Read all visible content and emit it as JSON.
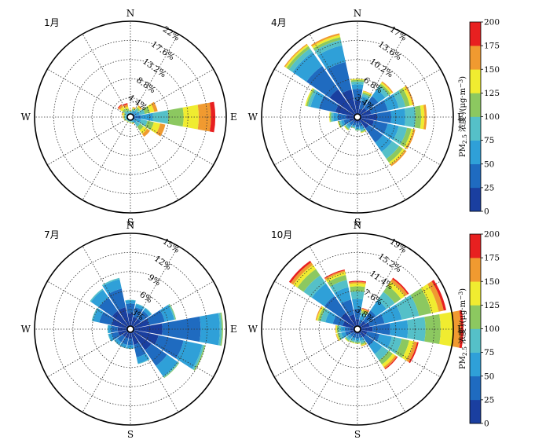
{
  "chart_data": [
    {
      "type": "wind-rose",
      "title": "1月",
      "directions": [
        "N",
        "NNE",
        "NE",
        "ENE",
        "E",
        "ESE",
        "SE",
        "SSE",
        "S",
        "SSW",
        "SW",
        "WSW",
        "W",
        "WNW",
        "NW",
        "NNW"
      ],
      "compass_labels": {
        "N": "N",
        "E": "E",
        "S": "S",
        "W": "W"
      },
      "ring_labels": [
        "4.4%",
        "8.8%",
        "13.2%",
        "17.6%",
        "22%"
      ],
      "rmax": 22,
      "bins": [
        0,
        25,
        50,
        75,
        100,
        125,
        150,
        175,
        200
      ],
      "frequencies": [
        [
          0.3,
          0.3,
          0.4,
          0.3,
          0.2,
          0.1,
          0.1,
          0
        ],
        [
          0.4,
          0.4,
          0.5,
          0.4,
          0.3,
          0.2,
          0.2,
          0
        ],
        [
          0.5,
          0.6,
          0.7,
          0.5,
          0.4,
          0.3,
          0.3,
          0
        ],
        [
          0.4,
          0.8,
          1.0,
          1.2,
          1.2,
          1.0,
          0.8,
          0
        ],
        [
          0.8,
          1.6,
          2.8,
          3.5,
          3.5,
          3.5,
          2.8,
          1.0
        ],
        [
          0.5,
          0.8,
          1.2,
          1.5,
          1.5,
          1.5,
          1.2,
          0
        ],
        [
          0.4,
          0.5,
          0.8,
          1.0,
          1.0,
          1.0,
          0.8,
          0
        ],
        [
          0.3,
          0.3,
          0.4,
          0.3,
          0.2,
          0.1,
          0.1,
          0
        ],
        [
          0.3,
          0.3,
          0.3,
          0.2,
          0.1,
          0.1,
          0,
          0
        ],
        [
          0.3,
          0.3,
          0.3,
          0.2,
          0.1,
          0.1,
          0,
          0
        ],
        [
          0.3,
          0.3,
          0.3,
          0.2,
          0.1,
          0.1,
          0,
          0
        ],
        [
          0.3,
          0.3,
          0.4,
          0.3,
          0.2,
          0.1,
          0,
          0
        ],
        [
          0.3,
          0.3,
          0.4,
          0.3,
          0.2,
          0.2,
          0.1,
          0
        ],
        [
          0.3,
          0.3,
          0.4,
          0.3,
          0.3,
          0.3,
          0.2,
          0
        ],
        [
          0.3,
          0.3,
          0.5,
          0.6,
          0.6,
          0.6,
          0.5,
          0.2
        ],
        [
          0.3,
          0.3,
          0.4,
          0.5,
          0.5,
          0.5,
          0.5,
          0.3
        ]
      ]
    },
    {
      "type": "wind-rose",
      "title": "4月",
      "directions": [
        "N",
        "NNE",
        "NE",
        "ENE",
        "E",
        "ESE",
        "SE",
        "SSE",
        "S",
        "SSW",
        "SW",
        "WSW",
        "W",
        "WNW",
        "NW",
        "NNW"
      ],
      "compass_labels": {
        "N": "N",
        "E": "E",
        "S": "S",
        "W": "W"
      },
      "ring_labels": [
        "3.4%",
        "6.8%",
        "10.2%",
        "13.6%",
        "17%"
      ],
      "rmax": 17,
      "bins": [
        0,
        25,
        50,
        75,
        100,
        125,
        150,
        175,
        200
      ],
      "frequencies": [
        [
          3.0,
          2.0,
          0.8,
          0.5,
          0.3,
          0.2,
          0,
          0
        ],
        [
          1.5,
          1.5,
          0.8,
          0.4,
          0.3,
          0.2,
          0.1,
          0
        ],
        [
          2.0,
          2.5,
          1.5,
          0.8,
          0.4,
          0.3,
          0.2,
          0
        ],
        [
          2.5,
          3.0,
          2.0,
          1.2,
          0.8,
          0.5,
          0.3,
          0
        ],
        [
          3.5,
          2.5,
          2.5,
          1.8,
          1.0,
          0.6,
          0.4,
          0
        ],
        [
          3.0,
          2.5,
          2.0,
          1.5,
          0.8,
          0.4,
          0.3,
          0
        ],
        [
          2.5,
          3.0,
          2.0,
          1.5,
          0.8,
          0.5,
          0.3,
          0
        ],
        [
          1.0,
          0.8,
          0.5,
          0.3,
          0.2,
          0.1,
          0,
          0
        ],
        [
          1.0,
          0.8,
          0.3,
          0.2,
          0.1,
          0,
          0,
          0
        ],
        [
          1.0,
          0.5,
          0.3,
          0.2,
          0.1,
          0,
          0,
          0
        ],
        [
          1.0,
          0.8,
          0.5,
          0.3,
          0.2,
          0.1,
          0,
          0
        ],
        [
          1.5,
          1.0,
          0.5,
          0.3,
          0.2,
          0.1,
          0,
          0
        ],
        [
          2.0,
          1.5,
          0.8,
          0.4,
          0.2,
          0.1,
          0,
          0
        ],
        [
          4.0,
          3.0,
          1.5,
          0.5,
          0.3,
          0.2,
          0,
          0
        ],
        [
          6.0,
          5.0,
          3.0,
          0.8,
          0.5,
          0.3,
          0.2,
          0
        ],
        [
          5.0,
          5.0,
          3.0,
          1.0,
          0.5,
          0.4,
          0.3,
          0
        ]
      ]
    },
    {
      "type": "wind-rose",
      "title": "7月",
      "directions": [
        "N",
        "NNE",
        "NE",
        "ENE",
        "E",
        "ESE",
        "SE",
        "SSE",
        "S",
        "SSW",
        "SW",
        "WSW",
        "W",
        "WNW",
        "NW",
        "NNW"
      ],
      "compass_labels": {
        "N": "N",
        "E": "E",
        "S": "S",
        "W": "W"
      },
      "ring_labels": [
        "3%",
        "6%",
        "9%",
        "12%",
        "15%"
      ],
      "rmax": 15,
      "bins": [
        0,
        25,
        50,
        75,
        100,
        125,
        150,
        175,
        200
      ],
      "frequencies": [
        [
          2.5,
          1.5,
          0.5,
          0.1,
          0,
          0,
          0,
          0
        ],
        [
          2.0,
          1.5,
          0.5,
          0.1,
          0,
          0,
          0,
          0
        ],
        [
          2.0,
          1.5,
          0.5,
          0.1,
          0,
          0,
          0,
          0
        ],
        [
          3.0,
          2.5,
          1.5,
          0.2,
          0.1,
          0,
          0,
          0
        ],
        [
          5.0,
          6.0,
          3.0,
          0.3,
          0.2,
          0,
          0,
          0
        ],
        [
          4.5,
          4.0,
          3.0,
          0.3,
          0.2,
          0,
          0,
          0
        ],
        [
          4.0,
          3.0,
          2.0,
          0.2,
          0.1,
          0,
          0,
          0
        ],
        [
          2.5,
          2.0,
          1.0,
          0.1,
          0,
          0,
          0,
          0
        ],
        [
          1.5,
          1.0,
          0.5,
          0.1,
          0,
          0,
          0,
          0
        ],
        [
          1.5,
          1.0,
          0.5,
          0.1,
          0,
          0,
          0,
          0
        ],
        [
          1.5,
          1.0,
          0.5,
          0.1,
          0,
          0,
          0,
          0
        ],
        [
          2.0,
          1.0,
          0.5,
          0.1,
          0,
          0,
          0,
          0
        ],
        [
          2.0,
          1.0,
          0.5,
          0.1,
          0,
          0,
          0,
          0
        ],
        [
          3.0,
          2.0,
          1.0,
          0.2,
          0,
          0,
          0,
          0
        ],
        [
          3.5,
          2.5,
          1.5,
          0.2,
          0,
          0,
          0,
          0
        ],
        [
          3.5,
          3.0,
          1.5,
          0.2,
          0,
          0,
          0,
          0
        ]
      ]
    },
    {
      "type": "wind-rose",
      "title": "10月",
      "directions": [
        "N",
        "NNE",
        "NE",
        "ENE",
        "E",
        "ESE",
        "SE",
        "SSE",
        "S",
        "SSW",
        "SW",
        "WSW",
        "W",
        "WNW",
        "NW",
        "NNW"
      ],
      "compass_labels": {
        "N": "N",
        "E": "E",
        "S": "S",
        "W": "W"
      },
      "ring_labels": [
        "3.8%",
        "7.6%",
        "11.4%",
        "15.2%",
        "19%"
      ],
      "rmax": 19,
      "bins": [
        0,
        25,
        50,
        75,
        100,
        125,
        150,
        175,
        200
      ],
      "frequencies": [
        [
          2.0,
          2.0,
          2.0,
          1.5,
          1.0,
          0.6,
          0.3,
          0.2
        ],
        [
          1.0,
          1.0,
          0.8,
          0.5,
          0.4,
          0.3,
          0.2,
          0.1
        ],
        [
          2.0,
          2.5,
          2.5,
          2.0,
          1.5,
          1.0,
          0.6,
          0.3
        ],
        [
          2.5,
          3.0,
          3.5,
          3.5,
          2.5,
          1.5,
          1.0,
          0.5
        ],
        [
          3.0,
          3.5,
          3.5,
          3.5,
          3.0,
          2.5,
          1.5,
          0.5
        ],
        [
          2.0,
          2.5,
          2.5,
          2.0,
          1.5,
          1.0,
          0.6,
          0.3
        ],
        [
          2.0,
          2.0,
          2.0,
          1.5,
          1.0,
          0.6,
          0.4,
          0.2
        ],
        [
          1.0,
          0.8,
          0.6,
          0.5,
          0.3,
          0.2,
          0.1,
          0
        ],
        [
          1.0,
          0.8,
          0.5,
          0.3,
          0.2,
          0.1,
          0,
          0
        ],
        [
          1.0,
          0.8,
          0.5,
          0.3,
          0.2,
          0.1,
          0,
          0
        ],
        [
          1.0,
          0.8,
          0.6,
          0.4,
          0.2,
          0.1,
          0,
          0
        ],
        [
          1.5,
          1.0,
          0.8,
          0.5,
          0.3,
          0.2,
          0.1,
          0
        ],
        [
          1.5,
          1.0,
          0.8,
          0.5,
          0.3,
          0.2,
          0.1,
          0
        ],
        [
          3.0,
          2.0,
          1.5,
          1.0,
          0.5,
          0.3,
          0.2,
          0
        ],
        [
          4.0,
          4.0,
          3.0,
          2.0,
          1.5,
          1.0,
          0.6,
          0.4
        ],
        [
          3.0,
          3.0,
          2.5,
          1.5,
          1.0,
          0.6,
          0.3,
          0.2
        ]
      ]
    }
  ],
  "colorbars": [
    {
      "label_main": "PM",
      "label_sub": "2.5",
      "label_rest": " 浓度 /(μg·m",
      "label_sup": "−3",
      "label_end": ")",
      "ticks": [
        "0",
        "25",
        "50",
        "75",
        "100",
        "125",
        "150",
        "175",
        "200"
      ]
    },
    {
      "label_main": "PM",
      "label_sub": "2.5",
      "label_rest": " 浓度 /(μg·m",
      "label_sup": "−3",
      "label_end": ")",
      "ticks": [
        "0",
        "25",
        "50",
        "75",
        "100",
        "125",
        "150",
        "175",
        "200"
      ]
    }
  ],
  "colors": [
    "#1a3fa0",
    "#1f6bc0",
    "#2fa0d8",
    "#55c0c8",
    "#8cc860",
    "#f0ec30",
    "#f09a30",
    "#e82020",
    "#701818"
  ]
}
